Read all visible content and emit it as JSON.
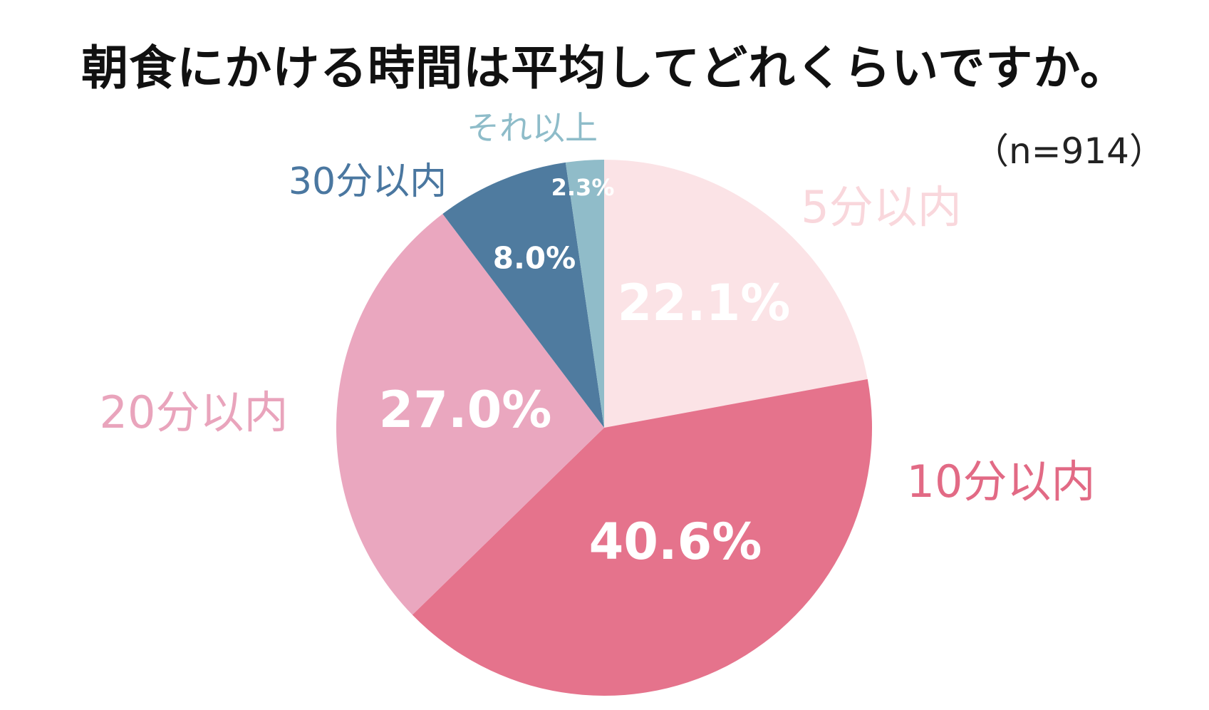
{
  "chart_data": {
    "type": "pie",
    "title": "朝食にかける時間は平均してどれくらいですか。",
    "sample_size": "（n=914）",
    "start_angle_deg": 0,
    "direction": "clockwise",
    "categories": [
      "5分以内",
      "10分以内",
      "20分以内",
      "30分以内",
      "それ以上"
    ],
    "values": [
      22.1,
      40.6,
      27.0,
      8.0,
      2.3
    ],
    "value_labels": [
      "22.1%",
      "40.6%",
      "27.0%",
      "8.0%",
      "2.3%"
    ],
    "colors": [
      "#fbe3e6",
      "#e5738c",
      "#eaa7bf",
      "#4f7b9f",
      "#90bcc9"
    ],
    "label_colors": [
      "#f9d7dc",
      "#e26a85",
      "#e9a4bc",
      "#4a77a0",
      "#8ebcc9"
    ],
    "legend": "none"
  }
}
